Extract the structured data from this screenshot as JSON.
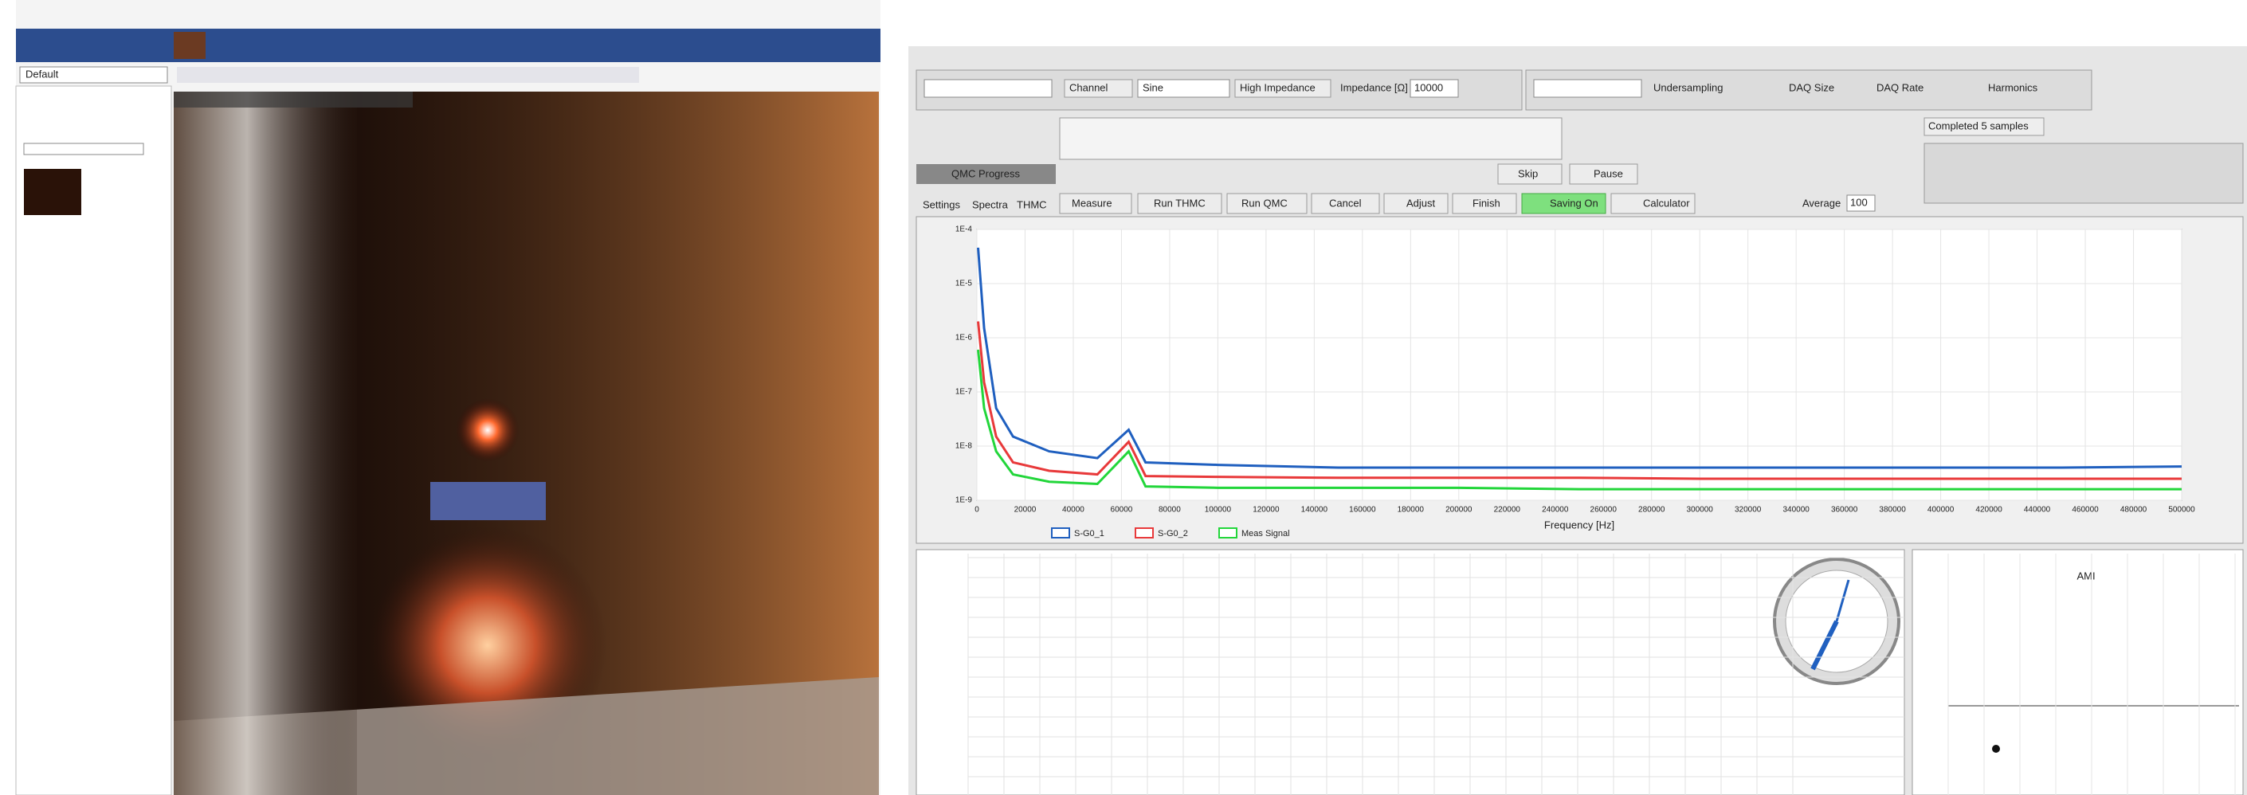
{
  "left_app": {
    "preset": "Default"
  },
  "right_app": {
    "fields": {
      "channel": "Channel",
      "waveform": "Sine",
      "input": "High Impedance",
      "impedance_label": "Impedance [Ω]",
      "impedance": "10000",
      "undersampling": "Undersampling",
      "daq_size": "DAQ Size",
      "daq_rate": "DAQ Rate",
      "harmonics": "Harmonics",
      "average_label": "Average",
      "average": "100",
      "status": "Completed 5 samples"
    },
    "progress": "QMC Progress",
    "tabs": [
      "Settings",
      "Spectra",
      "THMC"
    ],
    "buttons": {
      "skip": "Skip",
      "pause": "Pause",
      "measure": "Measure",
      "run_thmc": "Run THMC",
      "run_qmc": "Run QMC",
      "cancel": "Cancel",
      "adjust": "Adjust",
      "finish": "Finish",
      "saving": "Saving On",
      "calculator": "Calculator"
    },
    "side_plot_title": "AMI"
  },
  "chart_data": {
    "type": "line",
    "log_y": true,
    "grid": true,
    "xlabel": "Frequency [Hz]",
    "x": [
      500,
      3000,
      8000,
      15000,
      30000,
      50000,
      63000,
      70000,
      100000,
      150000,
      200000,
      250000,
      300000,
      350000,
      400000,
      450000,
      500000
    ],
    "series": [
      {
        "name": "S-G0_1",
        "color": "#1f5fbf",
        "values": [
          4.6e-05,
          1.5e-06,
          5e-08,
          1.5e-08,
          8e-09,
          6e-09,
          2e-08,
          5e-09,
          4.5e-09,
          4e-09,
          4e-09,
          4e-09,
          4e-09,
          4e-09,
          4e-09,
          4e-09,
          4.2e-09
        ]
      },
      {
        "name": "S-G0_2",
        "color": "#e8393a",
        "values": [
          2e-06,
          1.5e-07,
          1.5e-08,
          5e-09,
          3.5e-09,
          3e-09,
          1.2e-08,
          2.8e-09,
          2.7e-09,
          2.6e-09,
          2.6e-09,
          2.6e-09,
          2.5e-09,
          2.5e-09,
          2.5e-09,
          2.5e-09,
          2.5e-09
        ]
      },
      {
        "name": "Meas Signal",
        "color": "#22d63a",
        "values": [
          6e-07,
          5e-08,
          8e-09,
          3e-09,
          2.2e-09,
          2e-09,
          8e-09,
          1.8e-09,
          1.7e-09,
          1.7e-09,
          1.7e-09,
          1.6e-09,
          1.6e-09,
          1.6e-09,
          1.6e-09,
          1.6e-09,
          1.6e-09
        ]
      }
    ],
    "xlim": [
      0,
      500000
    ],
    "xticks": [
      0,
      20000,
      40000,
      60000,
      80000,
      100000,
      120000,
      140000,
      160000,
      180000,
      200000,
      220000,
      240000,
      260000,
      280000,
      300000,
      320000,
      340000,
      360000,
      380000,
      400000,
      420000,
      440000,
      460000,
      480000,
      500000
    ],
    "ylim": [
      1e-09,
      0.0001
    ],
    "yticks": [
      {
        "value": 1e-09,
        "label": "1E-9"
      },
      {
        "value": 1e-08,
        "label": "1E-8"
      },
      {
        "value": 1e-07,
        "label": "1E-7"
      },
      {
        "value": 1e-06,
        "label": "1E-6"
      },
      {
        "value": 1e-05,
        "label": "1E-5"
      },
      {
        "value": 0.0001,
        "label": "1E-4"
      }
    ]
  }
}
